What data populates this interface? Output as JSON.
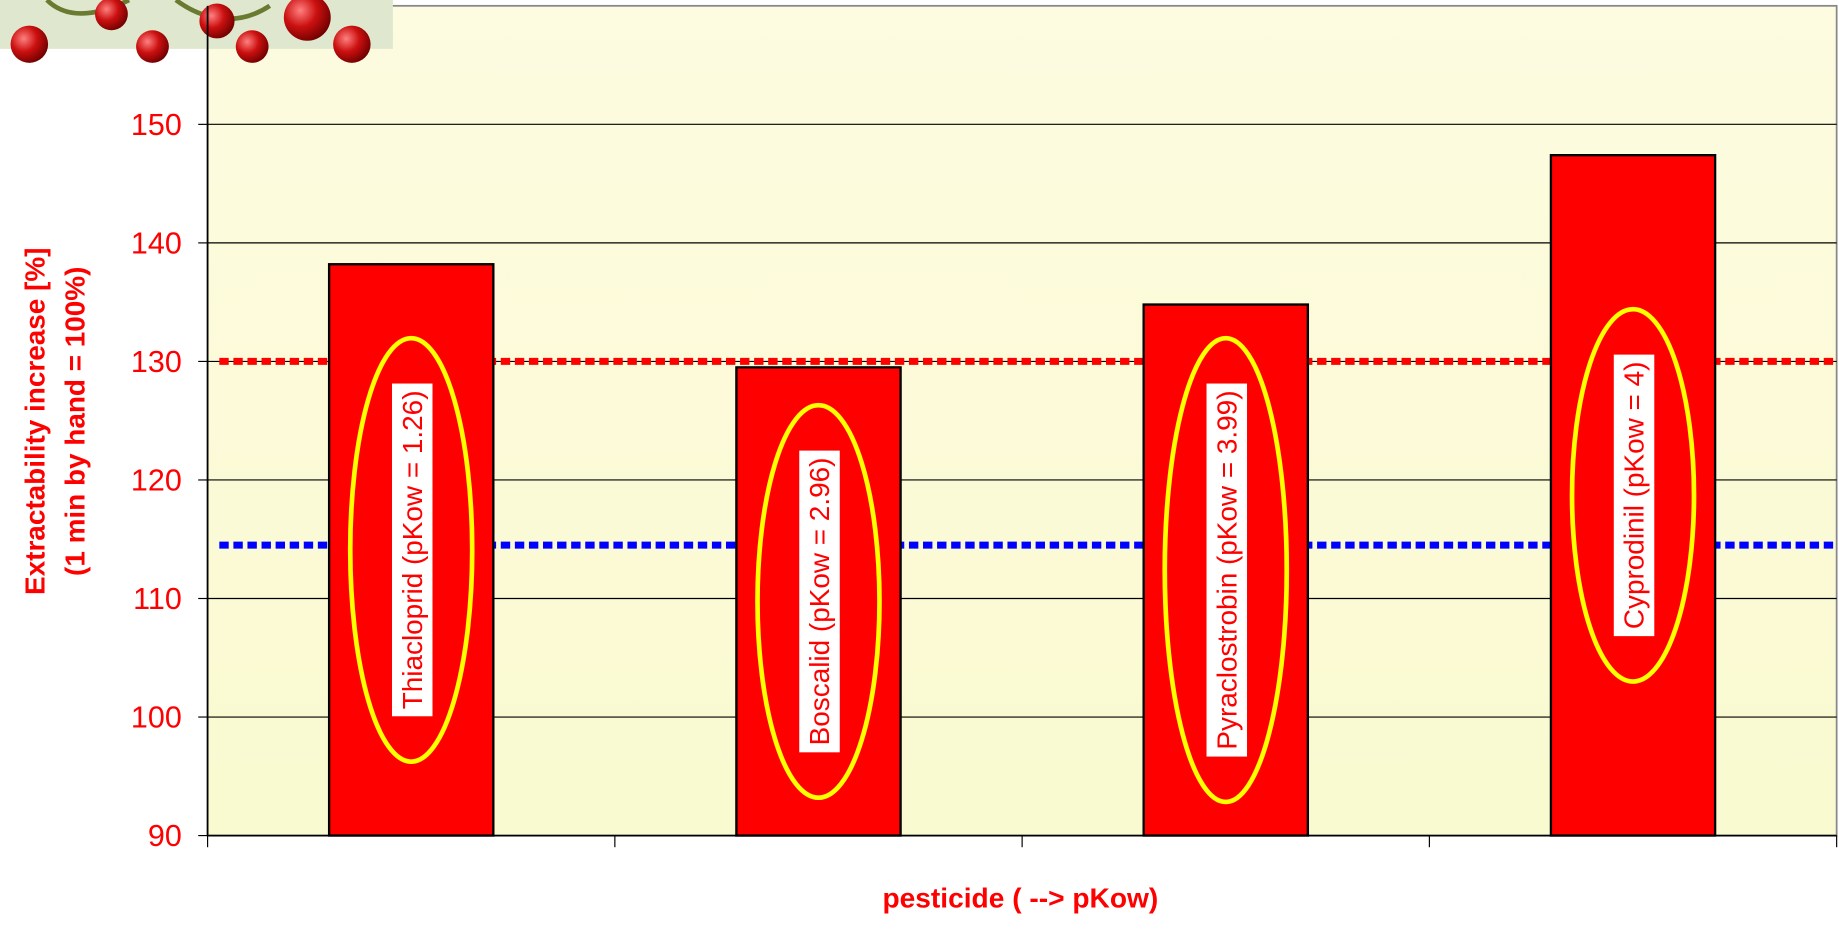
{
  "chart_data": {
    "type": "bar",
    "x_label": "pesticide  ( --> pKow)",
    "y_label": [
      "Extractability increase [%]",
      "(1 min by hand = 100%)"
    ],
    "categories": [
      "Thiacloprid (pKow = 1.26)",
      "Boscalid (pKow = 2.96)",
      "Pyraclostrobin (pKow = 3.99)",
      "Cyprodinil (pKow = 4)"
    ],
    "values": [
      138.2,
      129.5,
      134.8,
      147.4
    ],
    "color": "#ff0000",
    "ylim": [
      90,
      160
    ],
    "yticks": [
      90,
      100,
      110,
      120,
      130,
      140,
      150
    ],
    "grid": true,
    "reference_lines": [
      {
        "value": 130,
        "color": "#ff0000"
      },
      {
        "value": 114.5,
        "color": "#0000ff"
      }
    ]
  }
}
